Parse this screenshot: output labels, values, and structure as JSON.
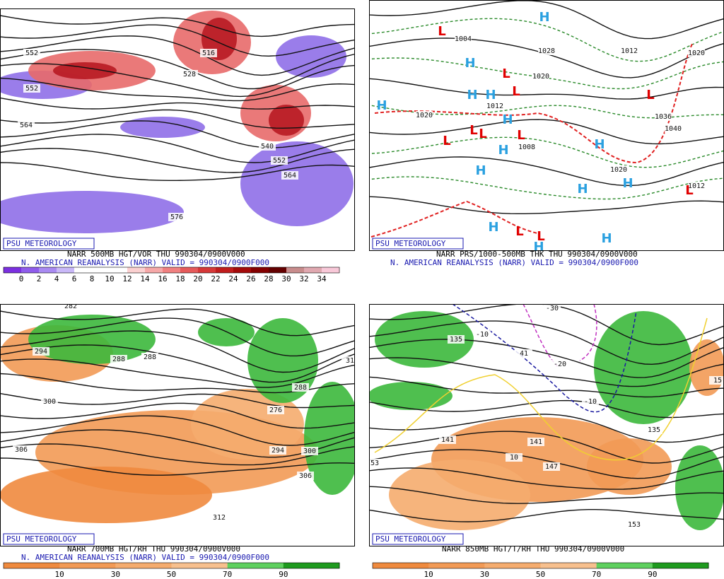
{
  "panels": [
    {
      "badge": "PSU METEOROLOGY",
      "caption": "NARR 500MB HGT/VOR THU 990304/0900V000",
      "subcaption": "N. AMERICAN REANALYSIS (NARR) VALID = 990304/0900F000",
      "contour_labels": [
        "552",
        "552",
        "564",
        "516",
        "528",
        "540",
        "552",
        "564",
        "576"
      ],
      "legend": {
        "labels": [
          "0",
          "2",
          "4",
          "6",
          "8",
          "10",
          "12",
          "14",
          "16",
          "18",
          "20",
          "22",
          "24",
          "26",
          "28",
          "30",
          "32",
          "34"
        ],
        "colors": [
          "#7b2fe0",
          "#8f5cec",
          "#a98af2",
          "#c9b8f8",
          "#ffffff",
          "#ffffff",
          "#ffffff",
          "#fbd0d0",
          "#f6a8a8",
          "#f08080",
          "#e65a5a",
          "#d63838",
          "#c01c1c",
          "#a40a0a",
          "#840000",
          "#640000",
          "#c88c8c",
          "#e0a8b0",
          "#f8c8d8"
        ]
      }
    },
    {
      "badge": "PSU METEOROLOGY",
      "caption": "NARR PRS/1000-500MB THK THU 990304/0900V000",
      "subcaption": "N. AMERICAN REANALYSIS (NARR) VALID = 990304/0900F000",
      "contour_labels": [
        "1004",
        "1028",
        "1020",
        "1012",
        "1012",
        "1020",
        "1020",
        "1036",
        "1040",
        "1008",
        "1020",
        "1012"
      ],
      "high_label": "H",
      "low_label": "L"
    },
    {
      "badge": "PSU METEOROLOGY",
      "caption": "NARR 700MB HGT/RH THU 990304/0900V000",
      "subcaption": "N. AMERICAN REANALYSIS (NARR) VALID = 990304/0900F000",
      "contour_labels": [
        "282",
        "294",
        "288",
        "288",
        "300",
        "306",
        "276",
        "288",
        "294",
        "300",
        "306",
        "312",
        "31"
      ],
      "legend": {
        "labels": [
          "10",
          "30",
          "50",
          "70",
          "90"
        ],
        "colors": [
          "#ef8a3e",
          "#f29a55",
          "#f5ac6e",
          "#f7c08e",
          "#5ed05e",
          "#1e9a1e"
        ]
      }
    },
    {
      "badge": "PSU METEOROLOGY",
      "caption": "NARR 850MB HGT/T/RH THU 990304/0900V000",
      "subcaption": "",
      "contour_labels": [
        "135",
        "-10",
        "41",
        "-30",
        "-20",
        "-10",
        "141",
        "141",
        "147",
        "153",
        "10",
        "135",
        "15",
        "53"
      ],
      "legend": {
        "labels": [
          "10",
          "30",
          "50",
          "70",
          "90"
        ],
        "colors": [
          "#ef8a3e",
          "#f29a55",
          "#f5ac6e",
          "#f7c08e",
          "#5ed05e",
          "#1e9a1e"
        ]
      }
    }
  ]
}
